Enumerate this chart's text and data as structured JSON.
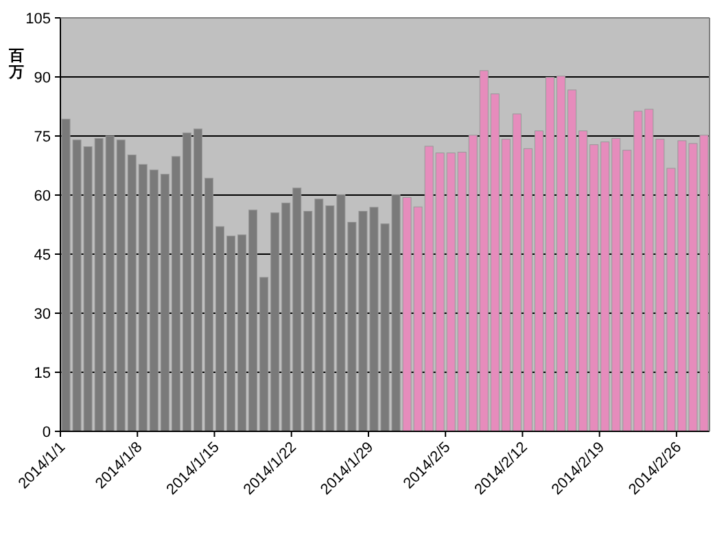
{
  "chart_data": {
    "type": "bar",
    "ylabel": "百万",
    "categories": [
      "2014/1/1",
      null,
      null,
      null,
      null,
      null,
      null,
      "2014/1/8",
      null,
      null,
      null,
      null,
      null,
      null,
      "2014/1/15",
      null,
      null,
      null,
      null,
      null,
      null,
      "2014/1/22",
      null,
      null,
      null,
      null,
      null,
      null,
      "2014/1/29",
      null,
      null,
      null,
      null,
      null,
      null,
      "2014/2/5",
      null,
      null,
      null,
      null,
      null,
      null,
      "2014/2/12",
      null,
      null,
      null,
      null,
      null,
      null,
      "2014/2/19",
      null,
      null,
      null,
      null,
      null,
      null,
      "2014/2/26",
      null,
      null
    ],
    "values": [
      79.3,
      74.0,
      72.3,
      74.4,
      75.0,
      74.0,
      70.2,
      67.8,
      66.4,
      65.3,
      69.8,
      75.8,
      76.8,
      64.3,
      52.0,
      49.6,
      49.9,
      56.2,
      39.1,
      55.5,
      58.0,
      61.8,
      55.9,
      59.0,
      57.3,
      60.1,
      53.1,
      55.9,
      56.9,
      52.7,
      60.1,
      59.4,
      57.0,
      72.4,
      70.7,
      70.7,
      70.9,
      75.2,
      91.6,
      85.7,
      74.2,
      80.6,
      71.8,
      76.3,
      89.9,
      90.2,
      86.7,
      76.3,
      72.8,
      73.5,
      74.4,
      71.4,
      81.3,
      81.8,
      74.2,
      66.8,
      73.8,
      73.1,
      75.2
    ],
    "colors": [
      "#7a7a7a",
      "#7a7a7a",
      "#7a7a7a",
      "#7a7a7a",
      "#7a7a7a",
      "#7a7a7a",
      "#7a7a7a",
      "#7a7a7a",
      "#7a7a7a",
      "#7a7a7a",
      "#7a7a7a",
      "#7a7a7a",
      "#7a7a7a",
      "#7a7a7a",
      "#7a7a7a",
      "#7a7a7a",
      "#7a7a7a",
      "#7a7a7a",
      "#7a7a7a",
      "#7a7a7a",
      "#7a7a7a",
      "#7a7a7a",
      "#7a7a7a",
      "#7a7a7a",
      "#7a7a7a",
      "#7a7a7a",
      "#7a7a7a",
      "#7a7a7a",
      "#7a7a7a",
      "#7a7a7a",
      "#7a7a7a",
      "#e68cbc",
      "#e68cbc",
      "#e68cbc",
      "#e68cbc",
      "#e68cbc",
      "#e68cbc",
      "#e68cbc",
      "#e68cbc",
      "#e68cbc",
      "#e68cbc",
      "#e68cbc",
      "#e68cbc",
      "#e68cbc",
      "#e68cbc",
      "#e68cbc",
      "#e68cbc",
      "#e68cbc",
      "#e68cbc",
      "#e68cbc",
      "#e68cbc",
      "#e68cbc",
      "#e68cbc",
      "#e68cbc",
      "#e68cbc",
      "#e68cbc",
      "#e68cbc",
      "#e68cbc",
      "#e68cbc"
    ],
    "ylim": [
      0,
      105
    ],
    "yticks": [
      0,
      15,
      30,
      45,
      60,
      75,
      90,
      105
    ],
    "grid": "y"
  }
}
